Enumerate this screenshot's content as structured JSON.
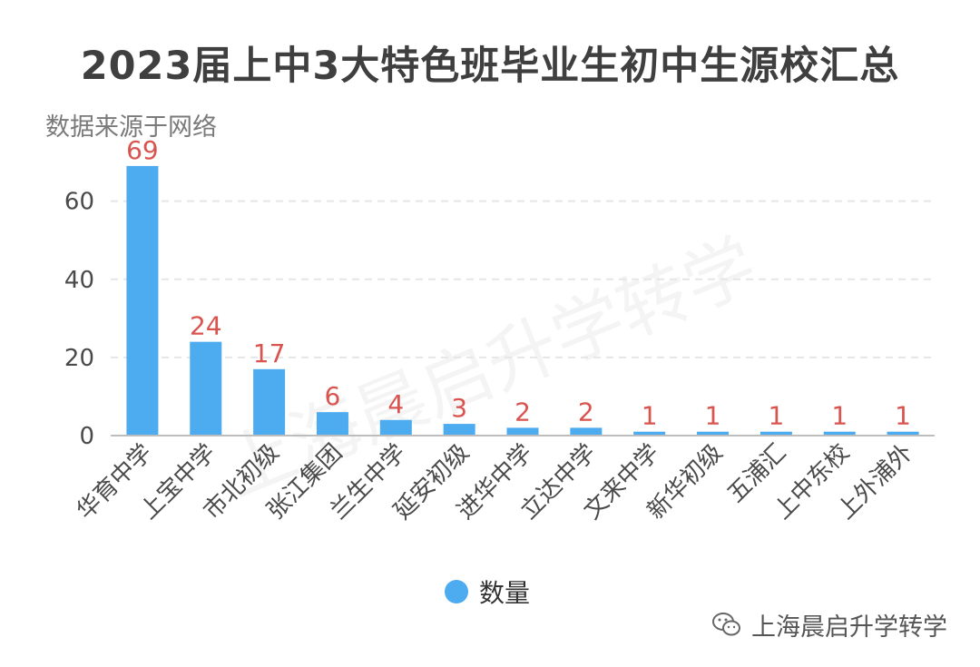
{
  "title": "2023届上中3大特色班毕业生初中生源校汇总",
  "subtitle": "数据来源于网络",
  "watermark": "上海晨启升学转学",
  "footer": {
    "text": "上海晨启升学转学",
    "icon": "wechat-icon"
  },
  "colors": {
    "bar": "#4dabf0",
    "label": "#d9534f",
    "axis_text": "#4a4a4a",
    "grid": "#e6e6e6"
  },
  "chart_data": {
    "type": "bar",
    "categories": [
      "华育中学",
      "上宝中学",
      "市北初级",
      "张江集团",
      "兰生中学",
      "延安初级",
      "进华中学",
      "立达中学",
      "文来中学",
      "新华初级",
      "五浦汇",
      "上中东校",
      "上外浦外"
    ],
    "series": [
      {
        "name": "数量",
        "values": [
          69,
          24,
          17,
          6,
          4,
          3,
          2,
          2,
          1,
          1,
          1,
          1,
          1
        ]
      }
    ],
    "yticks": [
      0,
      20,
      40,
      60
    ],
    "ylim": [
      0,
      72
    ],
    "grid": "horizontal-dashed",
    "legend": "bottom-center",
    "data_labels": true
  }
}
